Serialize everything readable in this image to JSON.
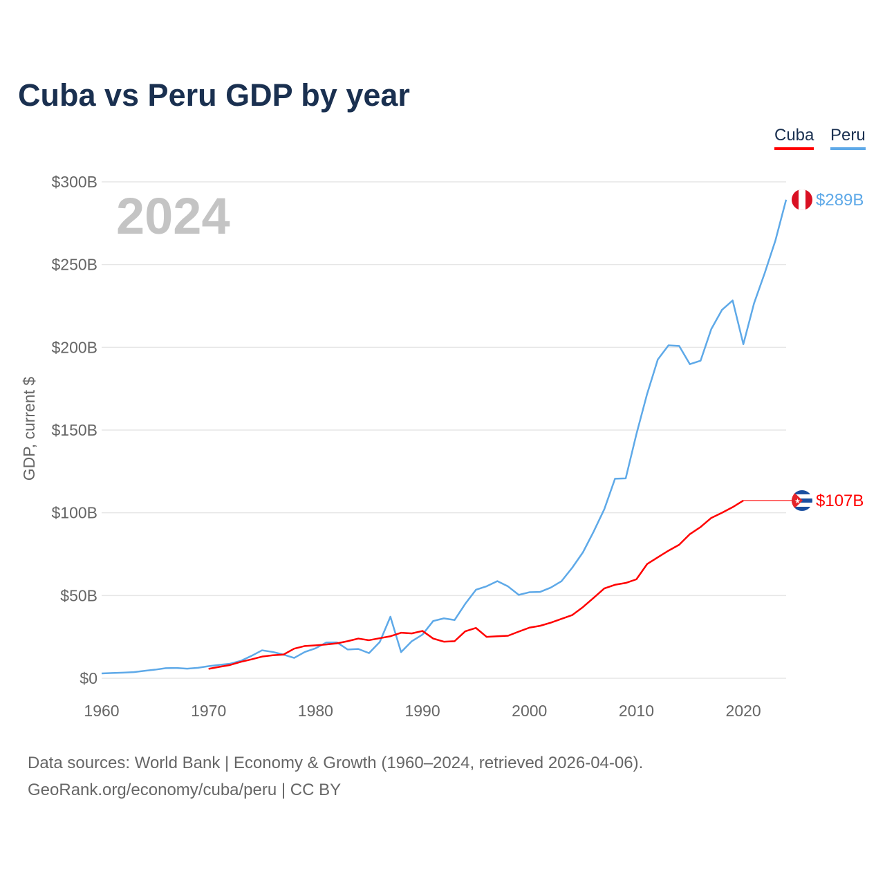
{
  "title": "Cuba vs Peru GDP by year",
  "legend": [
    {
      "label": "Cuba",
      "color": "#ff0000"
    },
    {
      "label": "Peru",
      "color": "#5ea9e8"
    }
  ],
  "source_line1": "Data sources: World Bank | Economy & Growth (1960–2024, retrieved 2026-04-06).",
  "source_line2": "GeoRank.org/economy/cuba/peru | CC BY",
  "chart_data": {
    "type": "line",
    "title": "Cuba vs Peru GDP by year",
    "year_label": "2024",
    "xlabel": "",
    "ylabel": "GDP, current $",
    "xlim": [
      1960,
      2024
    ],
    "ylim": [
      0,
      300
    ],
    "x_ticks": [
      1960,
      1970,
      1980,
      1990,
      2000,
      2010,
      2020
    ],
    "x_tick_labels": [
      "1960",
      "1970",
      "1980",
      "1990",
      "2000",
      "2010",
      "2020"
    ],
    "y_ticks": [
      0,
      50,
      100,
      150,
      200,
      250,
      300
    ],
    "y_tick_labels": [
      "$0",
      "$50B",
      "$100B",
      "$150B",
      "$200B",
      "$250B",
      "$300B"
    ],
    "grid": true,
    "legend_position": "top-right",
    "series": [
      {
        "name": "Peru",
        "color": "#5ea9e8",
        "end_label": "$289B",
        "flag": "peru",
        "start_year": 1960,
        "values": [
          2.9,
          3.2,
          3.4,
          3.7,
          4.5,
          5.2,
          6.1,
          6.2,
          5.8,
          6.3,
          7.3,
          8.1,
          8.8,
          10.5,
          13.5,
          16.9,
          15.9,
          14.3,
          12.3,
          15.9,
          18.1,
          21.6,
          21.7,
          17.4,
          17.7,
          15.2,
          21.9,
          37.2,
          15.8,
          22.4,
          26.4,
          34.6,
          36.2,
          35.2,
          45.0,
          53.5,
          55.6,
          58.7,
          55.5,
          50.4,
          52.0,
          52.2,
          54.8,
          58.7,
          66.8,
          76.1,
          88.6,
          102.2,
          120.6,
          120.8,
          147.5,
          171.8,
          192.6,
          201.2,
          200.8,
          189.8,
          191.9,
          211.0,
          222.6,
          228.3,
          201.9,
          226.6,
          244.9,
          264.6,
          289.2
        ]
      },
      {
        "name": "Cuba",
        "color": "#ff0000",
        "end_label": "$107B",
        "flag": "cuba",
        "start_year": 1970,
        "carried_forward_to": 2024,
        "values": [
          5.7,
          6.9,
          8.0,
          9.9,
          11.4,
          13.1,
          13.9,
          14.3,
          17.9,
          19.5,
          19.9,
          20.4,
          21.1,
          22.4,
          24.0,
          23.0,
          24.2,
          25.4,
          27.5,
          27.1,
          28.6,
          24.0,
          22.1,
          22.4,
          28.4,
          30.4,
          25.0,
          25.4,
          25.7,
          28.2,
          30.6,
          31.7,
          33.6,
          35.9,
          38.2,
          43.0,
          48.6,
          54.3,
          56.5,
          57.6,
          59.8,
          69.0,
          73.1,
          77.1,
          80.7,
          87.1,
          91.4,
          96.9,
          100.0,
          103.4,
          107.4
        ]
      }
    ]
  }
}
